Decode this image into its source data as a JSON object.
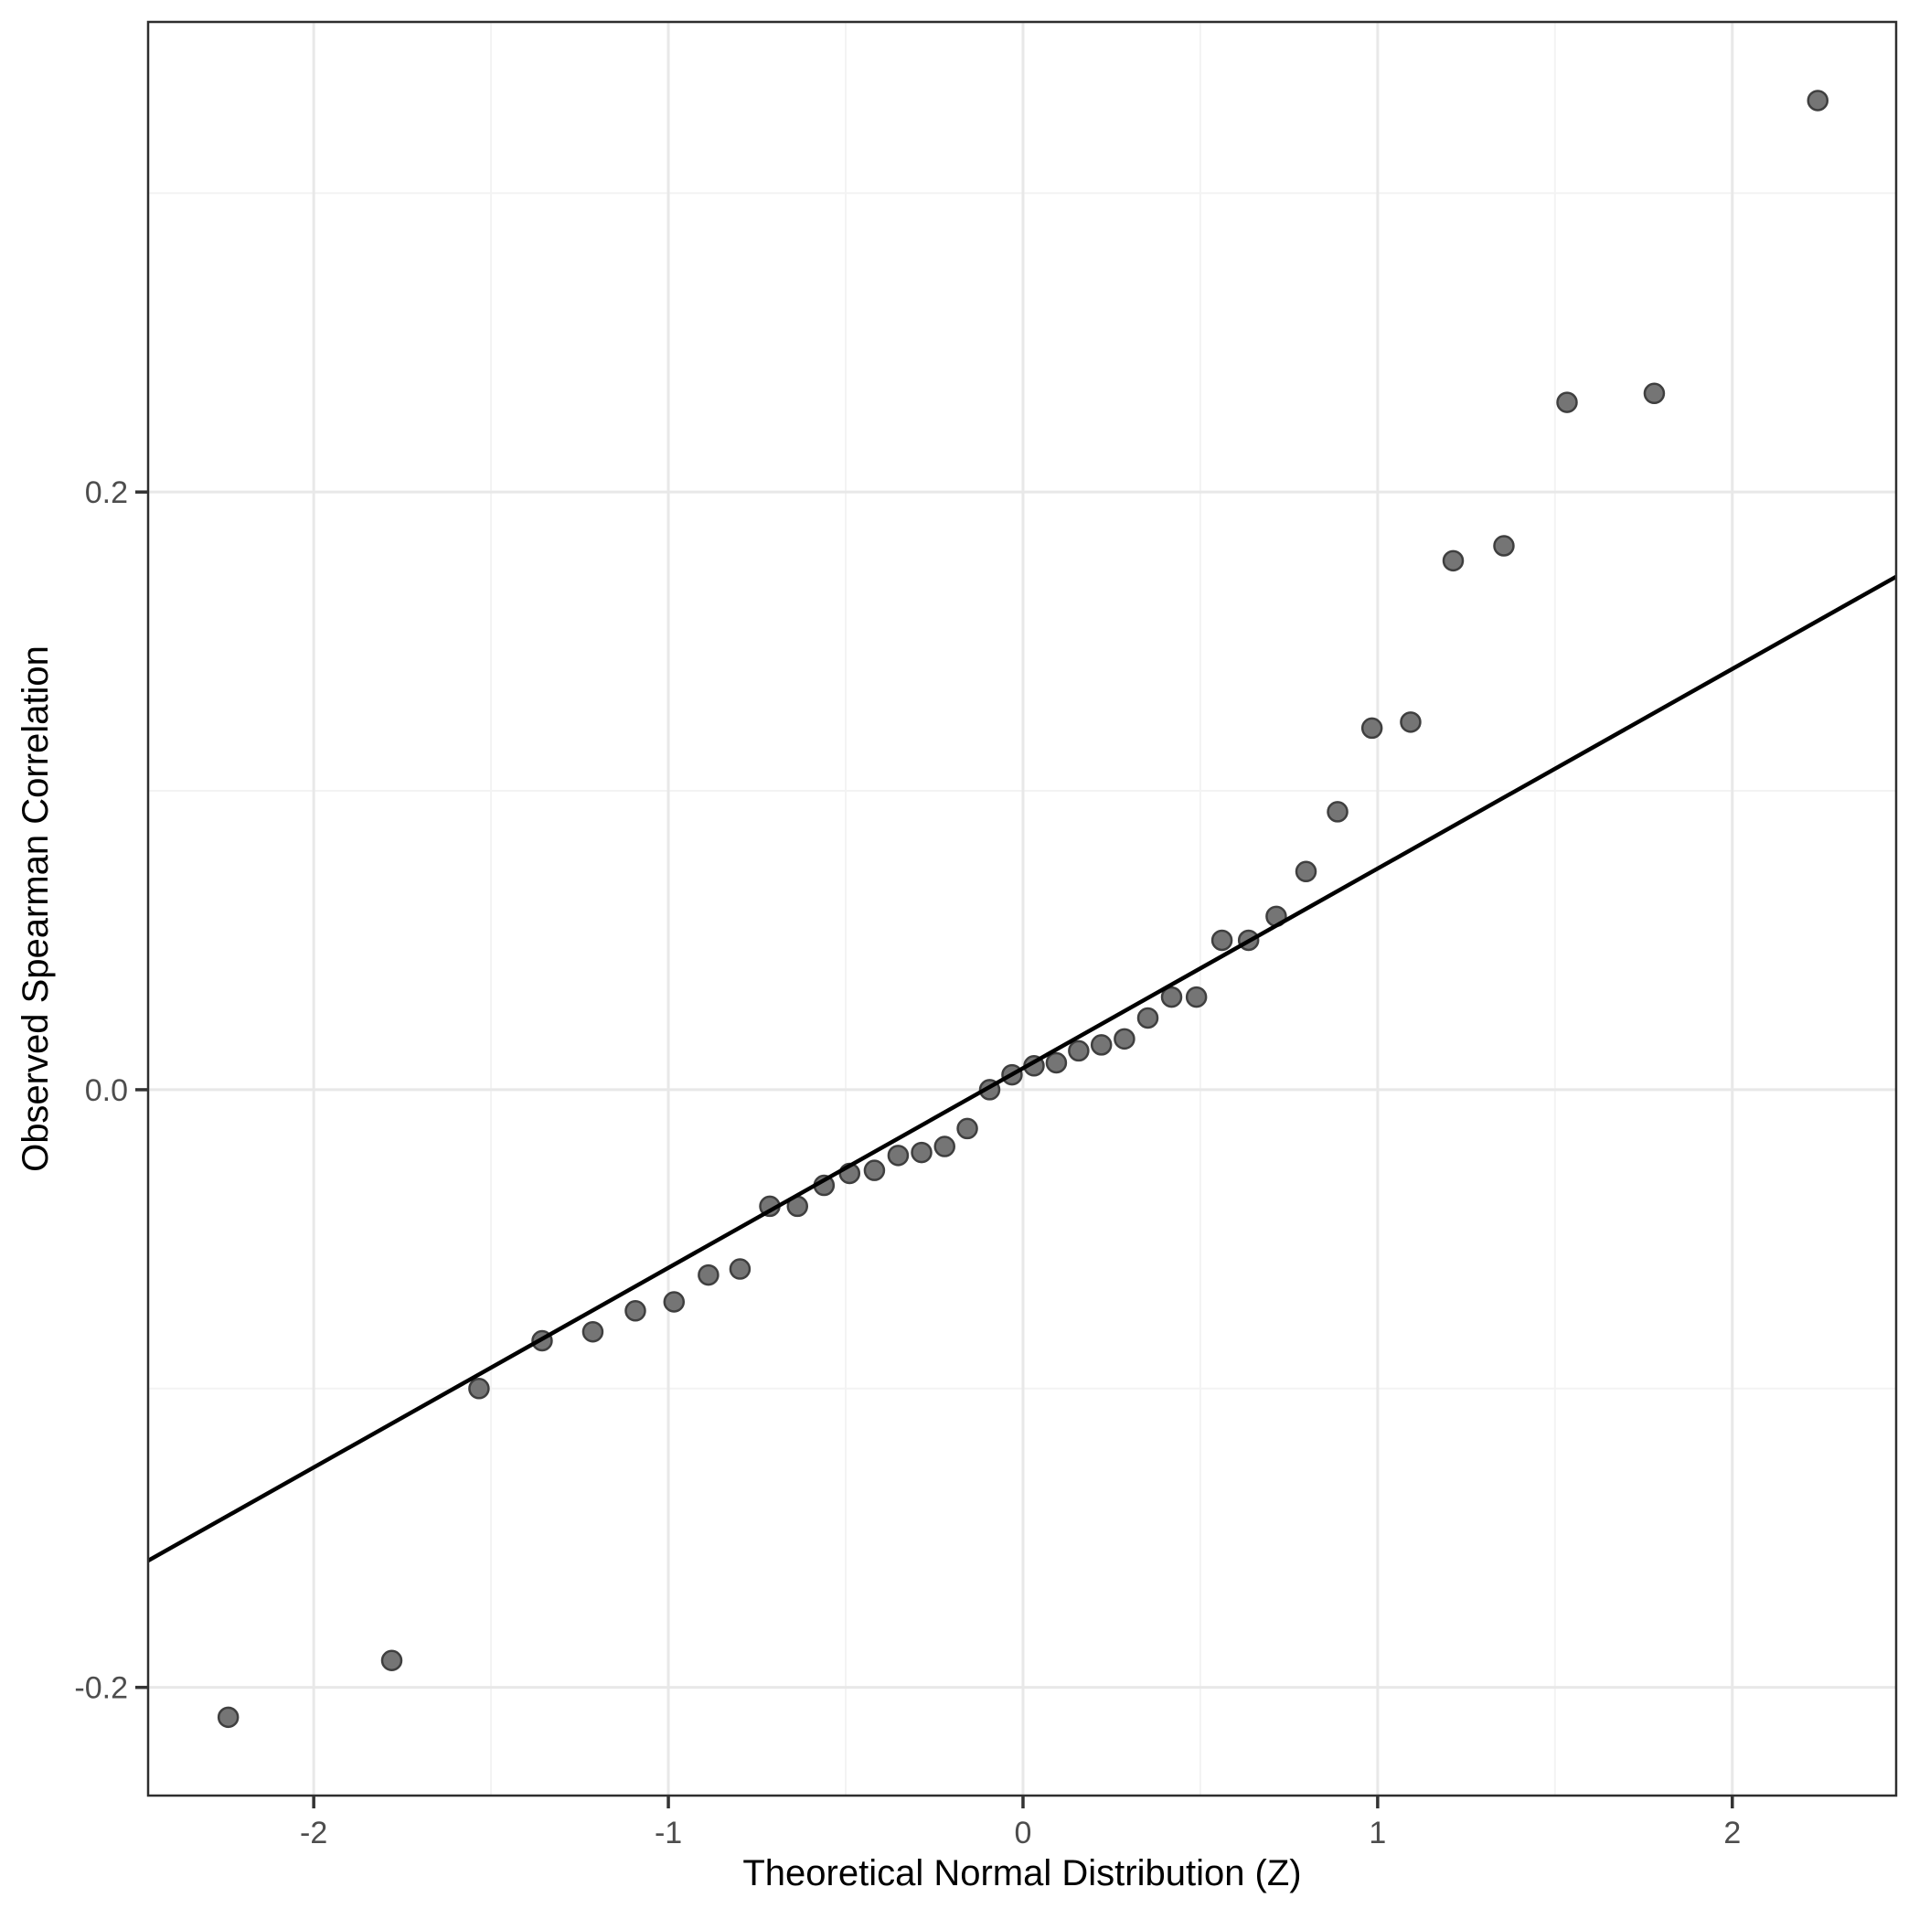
{
  "figure": {
    "background": "#ffffff",
    "title": ""
  },
  "chart_data": {
    "type": "scatter",
    "title": "",
    "xlabel": "Theoretical Normal Distribution (Z)",
    "ylabel": "Observed Spearman Correlation",
    "xlim": [
      -2.467,
      2.462
    ],
    "ylim": [
      -0.2362,
      0.3573
    ],
    "grid": "major+minor",
    "legend": "none",
    "x_ticks": [
      {
        "v": -2,
        "label": "-2"
      },
      {
        "v": -1,
        "label": "-1"
      },
      {
        "v": 0,
        "label": "0"
      },
      {
        "v": 1,
        "label": "1"
      },
      {
        "v": 2,
        "label": "2"
      }
    ],
    "y_ticks": [
      {
        "v": -0.2,
        "label": "-0.2"
      },
      {
        "v": 0.0,
        "label": "0.0"
      },
      {
        "v": 0.2,
        "label": "0.2"
      }
    ],
    "x_minor_ticks": [
      -1.5,
      -0.5,
      0.5,
      1.5
    ],
    "y_minor_ticks": [
      -0.1,
      0.1,
      0.3
    ],
    "points": [
      [
        -2.241,
        -0.21
      ],
      [
        -1.78,
        -0.191
      ],
      [
        -1.534,
        -0.1
      ],
      [
        -1.356,
        -0.084
      ],
      [
        -1.213,
        -0.081
      ],
      [
        -1.093,
        -0.074
      ],
      [
        -0.984,
        -0.071
      ],
      [
        -0.887,
        -0.062
      ],
      [
        -0.798,
        -0.06
      ],
      [
        -0.714,
        -0.039
      ],
      [
        -0.636,
        -0.039
      ],
      [
        -0.561,
        -0.032
      ],
      [
        -0.489,
        -0.028
      ],
      [
        -0.419,
        -0.027
      ],
      [
        -0.352,
        -0.022
      ],
      [
        -0.286,
        -0.021
      ],
      [
        -0.221,
        -0.019
      ],
      [
        -0.157,
        -0.013
      ],
      [
        -0.094,
        0.0
      ],
      [
        -0.031,
        0.005
      ],
      [
        0.031,
        0.008
      ],
      [
        0.094,
        0.009
      ],
      [
        0.157,
        0.013
      ],
      [
        0.221,
        0.015
      ],
      [
        0.286,
        0.017
      ],
      [
        0.352,
        0.024
      ],
      [
        0.419,
        0.031
      ],
      [
        0.489,
        0.031
      ],
      [
        0.561,
        0.05
      ],
      [
        0.636,
        0.05
      ],
      [
        0.714,
        0.058
      ],
      [
        0.798,
        0.073
      ],
      [
        0.887,
        0.093
      ],
      [
        0.984,
        0.121
      ],
      [
        1.093,
        0.123
      ],
      [
        1.213,
        0.177
      ],
      [
        1.356,
        0.182
      ],
      [
        1.534,
        0.23
      ],
      [
        1.78,
        0.233
      ],
      [
        2.241,
        0.331
      ]
    ],
    "ref_line": {
      "intercept": 0.0072,
      "slope": 0.0668
    },
    "colors": {
      "point_fill": "#757575",
      "point_stroke": "#3f3f3f",
      "ref_line": "#000000",
      "grid_major": "#e8e8e8",
      "grid_minor": "#f3f3f3",
      "panel_border": "#2e2e2e",
      "panel_background": "#ffffff",
      "tick_mark": "#333333",
      "tick_label": "#4d4d4d",
      "axis_title": "#000000"
    }
  }
}
